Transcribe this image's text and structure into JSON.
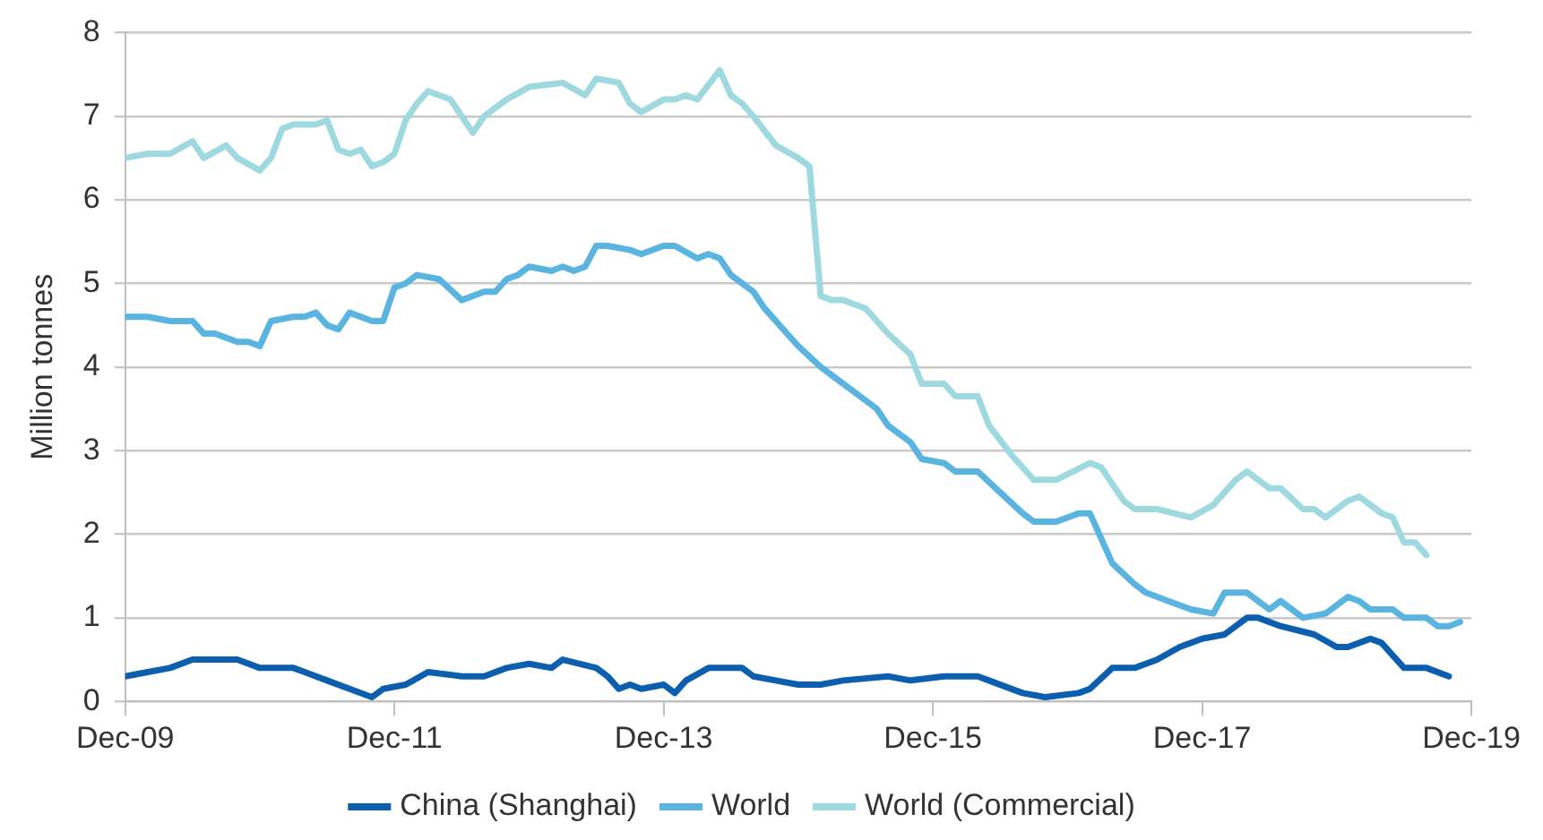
{
  "chart_data": {
    "type": "line",
    "ylabel": "Million tonnes",
    "xlim": [
      "2009-12",
      "2019-12"
    ],
    "xticks": [
      {
        "value": "2009-12",
        "label": "Dec-09"
      },
      {
        "value": "2011-12",
        "label": "Dec-11"
      },
      {
        "value": "2013-12",
        "label": "Dec-13"
      },
      {
        "value": "2015-12",
        "label": "Dec-15"
      },
      {
        "value": "2017-12",
        "label": "Dec-17"
      },
      {
        "value": "2019-12",
        "label": "Dec-19"
      }
    ],
    "ylim": [
      0,
      8
    ],
    "yticks": [
      0,
      1,
      2,
      3,
      4,
      5,
      6,
      7,
      8
    ],
    "grid": "y",
    "legend": "bottom",
    "marker": "none",
    "line_style": "solid",
    "series": [
      {
        "name": "China (Shanghai)",
        "color": "#0b5fae",
        "x": [
          "2009-12",
          "2010-02",
          "2010-04",
          "2010-06",
          "2010-08",
          "2010-10",
          "2010-12",
          "2011-03",
          "2011-04",
          "2011-06",
          "2011-08",
          "2011-10",
          "2011-11",
          "2012-01",
          "2012-03",
          "2012-06",
          "2012-08",
          "2012-10",
          "2012-12",
          "2013-02",
          "2013-03",
          "2013-06",
          "2013-07",
          "2013-08",
          "2013-09",
          "2013-10",
          "2013-12",
          "2014-01",
          "2014-02",
          "2014-04",
          "2014-07",
          "2014-08",
          "2014-10",
          "2014-12",
          "2015-02",
          "2015-04",
          "2015-08",
          "2015-10",
          "2016-01",
          "2016-04",
          "2016-05",
          "2016-08",
          "2016-10",
          "2017-01",
          "2017-02",
          "2017-04",
          "2017-06",
          "2017-08",
          "2017-10",
          "2017-12",
          "2018-02",
          "2018-04",
          "2018-05",
          "2018-07",
          "2018-10",
          "2018-12",
          "2019-01",
          "2019-03",
          "2019-04",
          "2019-06",
          "2019-08",
          "2019-10"
        ],
        "values": [
          0.3,
          0.35,
          0.4,
          0.5,
          0.5,
          0.5,
          0.4,
          0.4,
          0.35,
          0.25,
          0.15,
          0.05,
          0.15,
          0.2,
          0.35,
          0.3,
          0.3,
          0.4,
          0.45,
          0.4,
          0.5,
          0.4,
          0.3,
          0.15,
          0.2,
          0.15,
          0.2,
          0.1,
          0.25,
          0.4,
          0.4,
          0.3,
          0.25,
          0.2,
          0.2,
          0.25,
          0.3,
          0.25,
          0.3,
          0.3,
          0.25,
          0.1,
          0.05,
          0.1,
          0.15,
          0.4,
          0.4,
          0.5,
          0.65,
          0.75,
          0.8,
          1.0,
          1.0,
          0.9,
          0.8,
          0.65,
          0.65,
          0.75,
          0.7,
          0.4,
          0.4,
          0.3
        ]
      },
      {
        "name": "World",
        "color": "#5ab4e0",
        "x": [
          "2009-12",
          "2010-02",
          "2010-04",
          "2010-05",
          "2010-06",
          "2010-07",
          "2010-08",
          "2010-10",
          "2010-11",
          "2010-12",
          "2011-01",
          "2011-03",
          "2011-04",
          "2011-05",
          "2011-06",
          "2011-07",
          "2011-08",
          "2011-10",
          "2011-11",
          "2011-12",
          "2012-01",
          "2012-02",
          "2012-04",
          "2012-06",
          "2012-08",
          "2012-09",
          "2012-10",
          "2012-11",
          "2012-12",
          "2013-02",
          "2013-03",
          "2013-04",
          "2013-05",
          "2013-06",
          "2013-07",
          "2013-09",
          "2013-10",
          "2013-12",
          "2014-01",
          "2014-03",
          "2014-04",
          "2014-05",
          "2014-06",
          "2014-08",
          "2014-09",
          "2014-11",
          "2014-12",
          "2015-02",
          "2015-03",
          "2015-05",
          "2015-07",
          "2015-08",
          "2015-10",
          "2015-11",
          "2016-01",
          "2016-02",
          "2016-04",
          "2016-06",
          "2016-08",
          "2016-09",
          "2016-11",
          "2017-01",
          "2017-02",
          "2017-04",
          "2017-06",
          "2017-07",
          "2017-09",
          "2017-11",
          "2018-01",
          "2018-02",
          "2018-04",
          "2018-06",
          "2018-07",
          "2018-09",
          "2018-11",
          "2019-01",
          "2019-02",
          "2019-03",
          "2019-05",
          "2019-06",
          "2019-08",
          "2019-09",
          "2019-10",
          "2019-11"
        ],
        "values": [
          4.6,
          4.6,
          4.55,
          4.55,
          4.55,
          4.4,
          4.4,
          4.3,
          4.3,
          4.25,
          4.55,
          4.6,
          4.6,
          4.65,
          4.5,
          4.45,
          4.65,
          4.55,
          4.55,
          4.95,
          5.0,
          5.1,
          5.05,
          4.8,
          4.9,
          4.9,
          5.05,
          5.1,
          5.2,
          5.15,
          5.2,
          5.15,
          5.2,
          5.45,
          5.45,
          5.4,
          5.35,
          5.45,
          5.45,
          5.3,
          5.35,
          5.3,
          5.1,
          4.9,
          4.7,
          4.4,
          4.25,
          4.0,
          3.9,
          3.7,
          3.5,
          3.3,
          3.1,
          2.9,
          2.85,
          2.75,
          2.75,
          2.5,
          2.25,
          2.15,
          2.15,
          2.25,
          2.25,
          1.65,
          1.4,
          1.3,
          1.2,
          1.1,
          1.05,
          1.3,
          1.3,
          1.1,
          1.2,
          1.0,
          1.05,
          1.25,
          1.2,
          1.1,
          1.1,
          1.0,
          1.0,
          0.9,
          0.9,
          0.95
        ]
      },
      {
        "name": "World (Commercial)",
        "color": "#9fd9e0",
        "x": [
          "2009-12",
          "2010-02",
          "2010-04",
          "2010-06",
          "2010-07",
          "2010-09",
          "2010-10",
          "2010-12",
          "2011-01",
          "2011-02",
          "2011-03",
          "2011-05",
          "2011-06",
          "2011-07",
          "2011-08",
          "2011-09",
          "2011-10",
          "2011-11",
          "2011-12",
          "2012-01",
          "2012-02",
          "2012-03",
          "2012-05",
          "2012-07",
          "2012-08",
          "2012-10",
          "2012-12",
          "2013-03",
          "2013-05",
          "2013-06",
          "2013-08",
          "2013-09",
          "2013-10",
          "2013-12",
          "2014-01",
          "2014-02",
          "2014-03",
          "2014-05",
          "2014-06",
          "2014-07",
          "2014-08",
          "2014-10",
          "2014-12",
          "2015-01",
          "2015-02",
          "2015-03",
          "2015-04",
          "2015-05",
          "2015-06",
          "2015-07",
          "2015-08",
          "2015-10",
          "2015-11",
          "2016-01",
          "2016-02",
          "2016-04",
          "2016-05",
          "2016-07",
          "2016-09",
          "2016-11",
          "2017-02",
          "2017-03",
          "2017-05",
          "2017-06",
          "2017-08",
          "2017-11",
          "2018-01",
          "2018-03",
          "2018-04",
          "2018-06",
          "2018-07",
          "2018-09",
          "2018-10",
          "2018-11",
          "2019-01",
          "2019-02",
          "2019-04",
          "2019-05",
          "2019-06",
          "2019-07",
          "2019-08"
        ],
        "values": [
          6.5,
          6.55,
          6.55,
          6.7,
          6.5,
          6.65,
          6.5,
          6.35,
          6.5,
          6.85,
          6.9,
          6.9,
          6.95,
          6.6,
          6.55,
          6.6,
          6.4,
          6.45,
          6.55,
          6.95,
          7.15,
          7.3,
          7.2,
          6.8,
          7.0,
          7.2,
          7.35,
          7.4,
          7.25,
          7.45,
          7.4,
          7.15,
          7.05,
          7.2,
          7.2,
          7.25,
          7.2,
          7.55,
          7.25,
          7.15,
          7.0,
          6.65,
          6.5,
          6.4,
          4.85,
          4.8,
          4.8,
          4.75,
          4.7,
          4.55,
          4.4,
          4.15,
          3.8,
          3.8,
          3.65,
          3.65,
          3.3,
          2.95,
          2.65,
          2.65,
          2.85,
          2.8,
          2.4,
          2.3,
          2.3,
          2.2,
          2.35,
          2.65,
          2.75,
          2.55,
          2.55,
          2.3,
          2.3,
          2.2,
          2.4,
          2.45,
          2.25,
          2.2,
          1.9,
          1.9,
          1.75
        ]
      }
    ]
  }
}
